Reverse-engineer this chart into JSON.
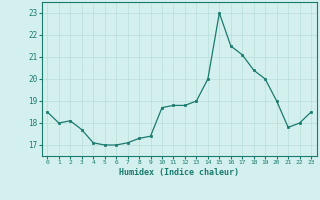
{
  "x": [
    0,
    1,
    2,
    3,
    4,
    5,
    6,
    7,
    8,
    9,
    10,
    11,
    12,
    13,
    14,
    15,
    16,
    17,
    18,
    19,
    20,
    21,
    22,
    23
  ],
  "y": [
    18.5,
    18.0,
    18.1,
    17.7,
    17.1,
    17.0,
    17.0,
    17.1,
    17.3,
    17.4,
    18.7,
    18.8,
    18.8,
    19.0,
    20.0,
    23.0,
    21.5,
    21.1,
    20.4,
    20.0,
    19.0,
    17.8,
    18.0,
    18.5
  ],
  "xlabel": "Humidex (Indice chaleur)",
  "ylim": [
    16.5,
    23.5
  ],
  "xlim": [
    -0.5,
    23.5
  ],
  "yticks": [
    17,
    18,
    19,
    20,
    21,
    22,
    23
  ],
  "xticks": [
    0,
    1,
    2,
    3,
    4,
    5,
    6,
    7,
    8,
    9,
    10,
    11,
    12,
    13,
    14,
    15,
    16,
    17,
    18,
    19,
    20,
    21,
    22,
    23
  ],
  "line_color": "#1a7a6e",
  "marker_color": "#1a7a6e",
  "bg_color": "#d4f0ee",
  "grid_color": "#b8deda",
  "axis_color": "#1a7a6e",
  "tick_color": "#1a7a6e",
  "label_color": "#1a7a6e"
}
